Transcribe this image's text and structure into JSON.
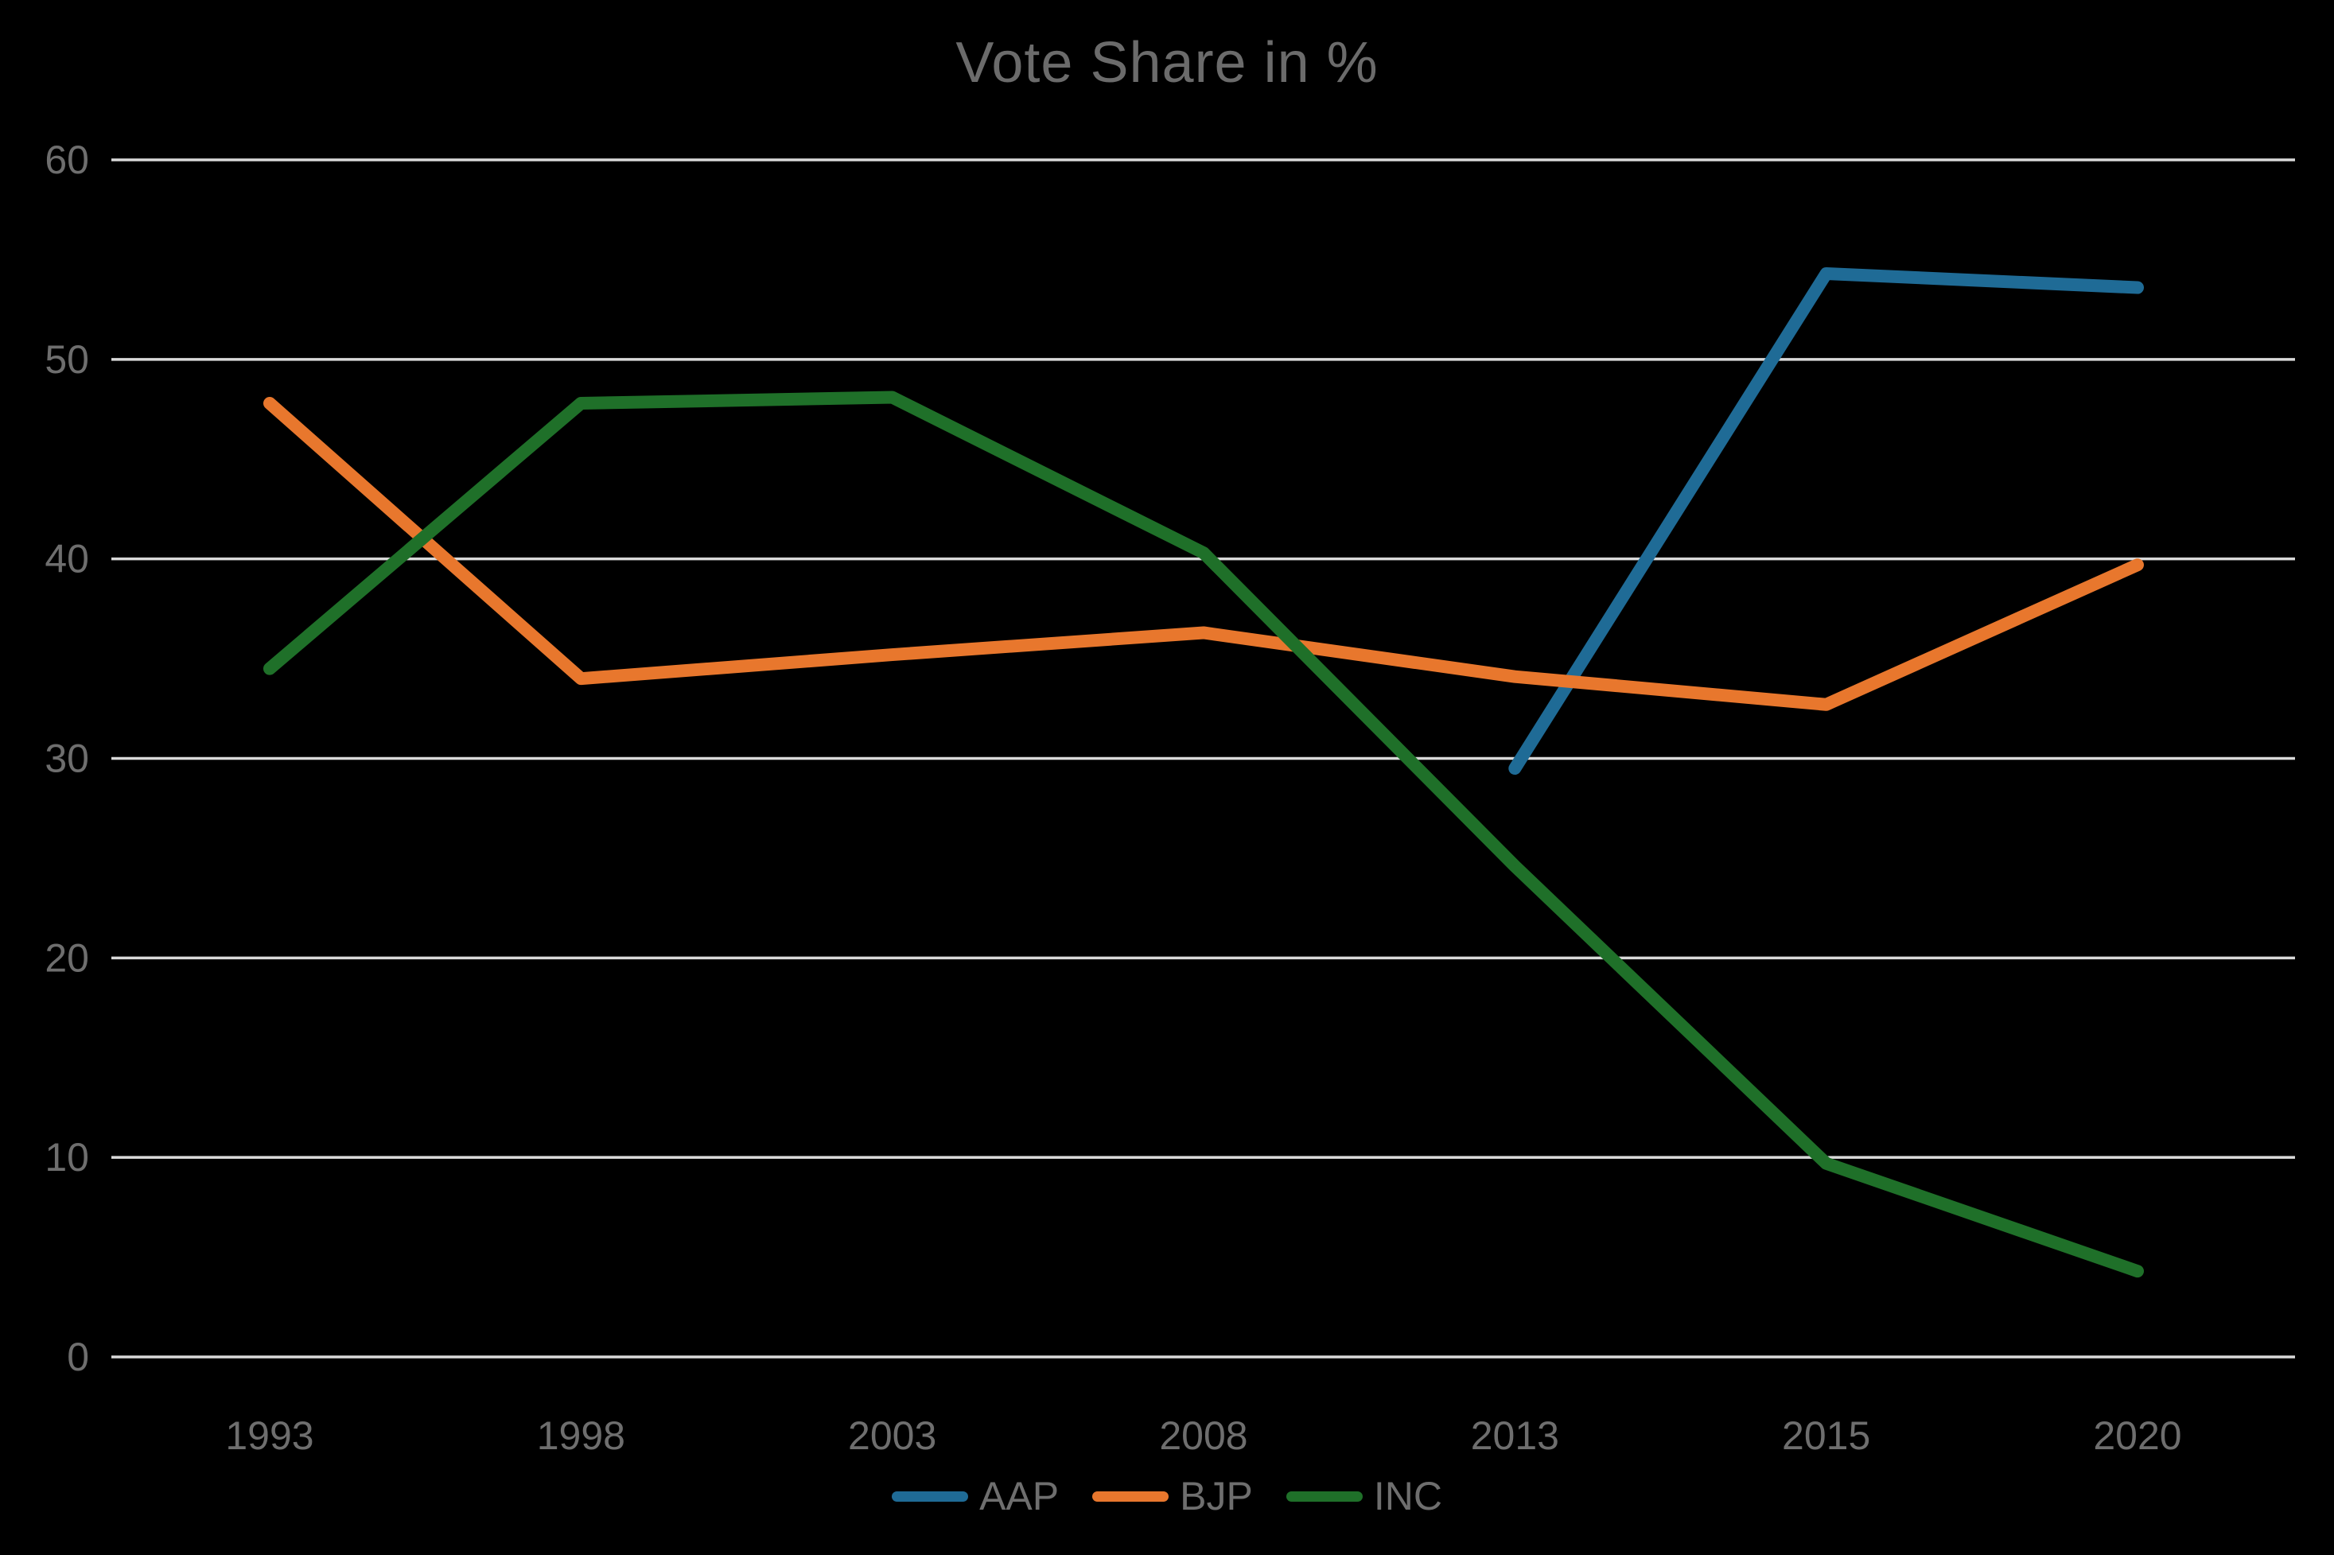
{
  "title": "Vote Share in %",
  "chart_data": {
    "type": "line",
    "title": "Vote Share in %",
    "categories": [
      "1993",
      "1998",
      "2003",
      "2008",
      "2013",
      "2015",
      "2020"
    ],
    "series": [
      {
        "name": "AAP",
        "color": "#1F6B96",
        "values": [
          null,
          null,
          null,
          null,
          29.5,
          54.3,
          53.6
        ]
      },
      {
        "name": "BJP",
        "color": "#E8772D",
        "values": [
          47.8,
          34.0,
          35.2,
          36.3,
          34.1,
          32.7,
          39.7
        ]
      },
      {
        "name": "INC",
        "color": "#1F7029",
        "values": [
          34.5,
          47.8,
          48.1,
          40.3,
          24.6,
          9.7,
          4.3
        ]
      }
    ],
    "xlabel": "",
    "ylabel": "",
    "ylim": [
      0,
      60
    ],
    "yticks": [
      0,
      10,
      20,
      30,
      40,
      50,
      60
    ],
    "grid": "horizontal",
    "legend_position": "bottom-center",
    "background_color": "#000000",
    "text_color": "#6E6E6E",
    "gridline_color": "#D9D9D9"
  }
}
